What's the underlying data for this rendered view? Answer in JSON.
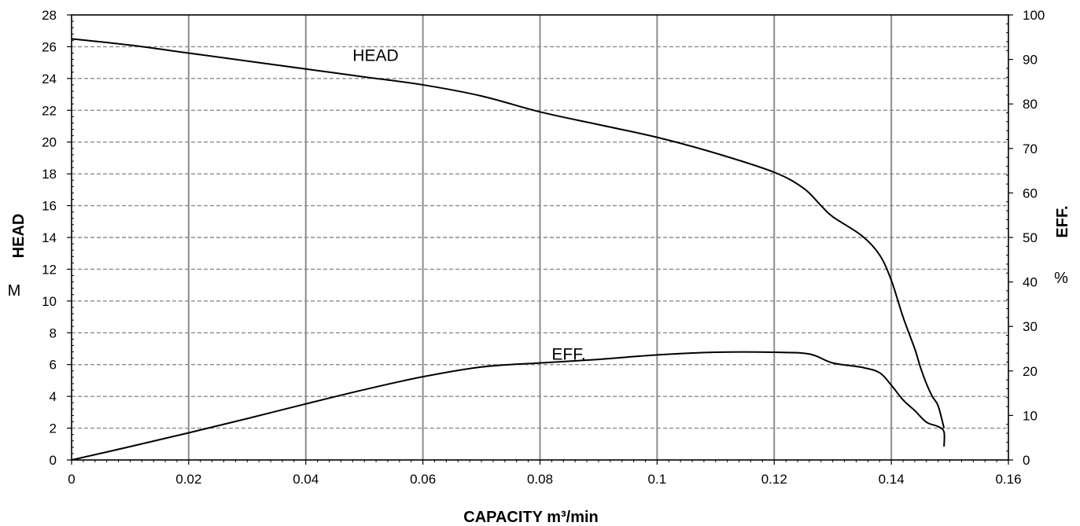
{
  "chart_data": {
    "type": "line",
    "title": "",
    "xlabel": "CAPACITY m³/min",
    "ylabel": "HEAD",
    "ylabel_unit": "M",
    "y2label": "EFF.",
    "y2label_unit": "%",
    "xlim": [
      0,
      0.16
    ],
    "ylim": [
      0,
      28
    ],
    "y2lim": [
      0,
      100
    ],
    "xticks": [
      "0",
      "0.02",
      "0.04",
      "0.06",
      "0.08",
      "0.1",
      "0.12",
      "0.14",
      "0.16"
    ],
    "yticks": [
      "0",
      "2",
      "4",
      "6",
      "8",
      "10",
      "12",
      "14",
      "16",
      "18",
      "20",
      "22",
      "24",
      "26",
      "28"
    ],
    "y2ticks": [
      "0",
      "10",
      "20",
      "30",
      "40",
      "50",
      "60",
      "70",
      "80",
      "90",
      "100"
    ],
    "grid": {
      "vertical": "solid gray",
      "horizontal": "dashed gray"
    },
    "series": [
      {
        "name": "HEAD",
        "axis": "left",
        "x": [
          0,
          0.01,
          0.02,
          0.03,
          0.04,
          0.05,
          0.06,
          0.07,
          0.08,
          0.09,
          0.1,
          0.11,
          0.12,
          0.125,
          0.128,
          0.13,
          0.135,
          0.138,
          0.14,
          0.142,
          0.144,
          0.145,
          0.146,
          0.147,
          0.148,
          0.149
        ],
        "y": [
          26.5,
          26.1,
          25.6,
          25.1,
          24.6,
          24.1,
          23.6,
          22.9,
          21.9,
          21.1,
          20.3,
          19.3,
          18.1,
          17.1,
          16.0,
          15.3,
          14.1,
          12.9,
          11.3,
          9.0,
          7.0,
          5.8,
          4.8,
          4.0,
          3.4,
          2.0
        ]
      },
      {
        "name": "EFF.",
        "axis": "right",
        "x": [
          0,
          0.01,
          0.02,
          0.03,
          0.04,
          0.05,
          0.06,
          0.07,
          0.08,
          0.09,
          0.1,
          0.11,
          0.12,
          0.126,
          0.13,
          0.135,
          0.138,
          0.14,
          0.142,
          0.144,
          0.146,
          0.148,
          0.149,
          0.149
        ],
        "y": [
          0,
          3.0,
          6.1,
          9.3,
          12.6,
          15.8,
          18.7,
          20.9,
          21.8,
          22.6,
          23.6,
          24.2,
          24.2,
          23.8,
          21.8,
          20.8,
          19.6,
          16.8,
          13.5,
          11.1,
          8.5,
          7.5,
          6.3,
          3.0
        ]
      }
    ],
    "annotations": [
      {
        "text": "HEAD",
        "x": 0.048,
        "y": 25.1,
        "axis": "left"
      },
      {
        "text": "EFF.",
        "x": 0.082,
        "y": 6.3,
        "axis": "left"
      }
    ]
  }
}
